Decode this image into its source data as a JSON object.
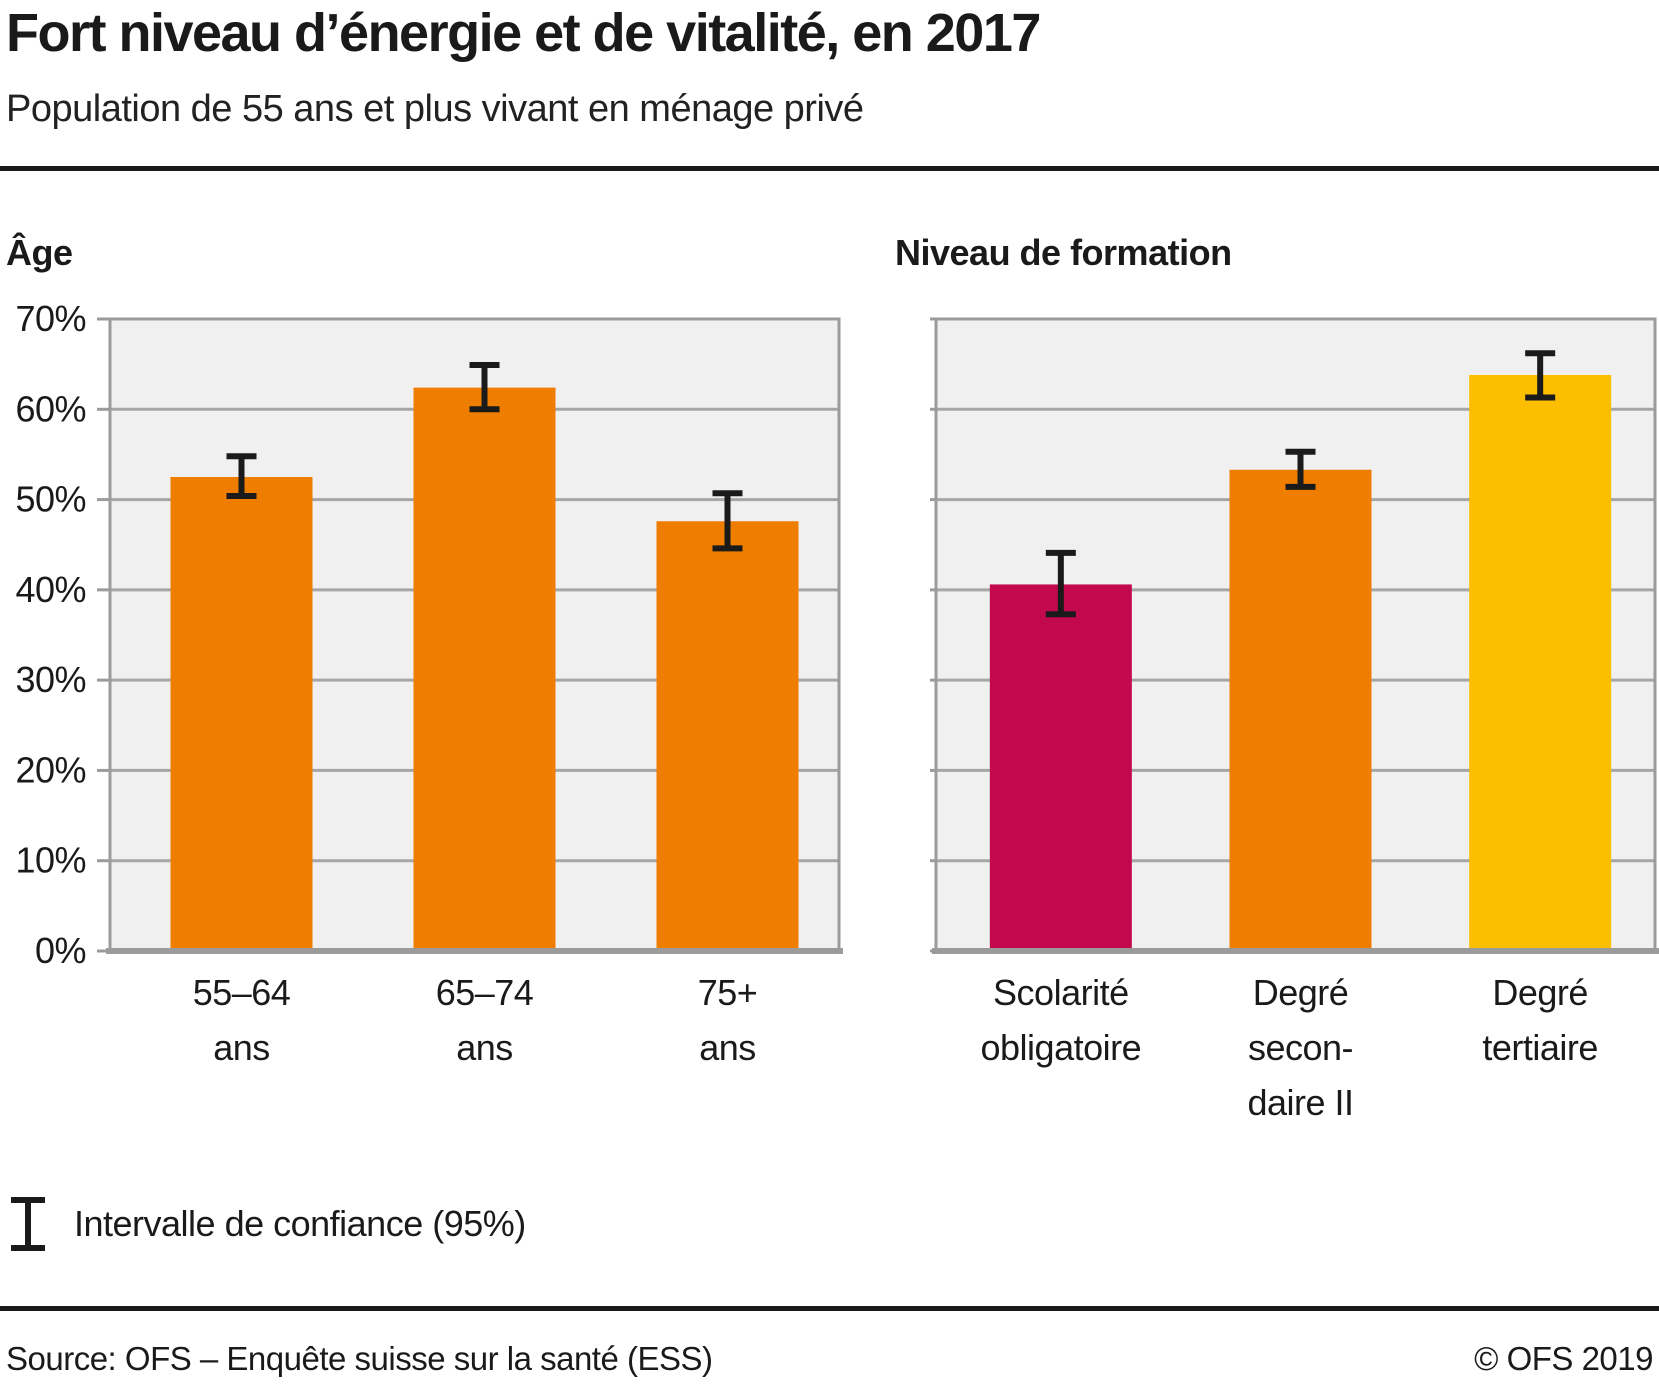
{
  "header": {
    "title": "Fort niveau d’énergie et de vitalité, en 2017",
    "subtitle": "Population de 55 ans et plus vivant en ménage privé"
  },
  "colors": {
    "orange": "#EF7D00",
    "magenta": "#C2094D",
    "yellow": "#FBBE00",
    "plot_bg": "#F0F0F0",
    "gridline": "#A6A6A6",
    "axis": "#9B9B9B",
    "error_bar": "#1A1A1A",
    "text": "#1A1A1A"
  },
  "chart_data": [
    {
      "type": "bar",
      "title": "Âge",
      "categories": [
        [
          "55–64",
          "ans"
        ],
        [
          "65–74",
          "ans"
        ],
        [
          "75+",
          "ans"
        ]
      ],
      "values": [
        52.5,
        62.4,
        47.6
      ],
      "ci_low": [
        50.4,
        60.0,
        44.6
      ],
      "ci_high": [
        54.8,
        64.9,
        50.7
      ],
      "bar_colors": [
        "#EF7D00",
        "#EF7D00",
        "#EF7D00"
      ],
      "ylim": [
        0,
        70
      ],
      "ytick_labels": [
        "0%",
        "10%",
        "20%",
        "30%",
        "40%",
        "50%",
        "60%",
        "70%"
      ],
      "grid": true,
      "legend_position": "none"
    },
    {
      "type": "bar",
      "title": "Niveau de formation",
      "categories": [
        [
          "Scolarité",
          "obligatoire"
        ],
        [
          "Degré",
          "secon-",
          "daire II"
        ],
        [
          "Degré",
          "tertiaire"
        ]
      ],
      "values": [
        40.6,
        53.3,
        63.8
      ],
      "ci_low": [
        37.3,
        51.4,
        61.3
      ],
      "ci_high": [
        44.1,
        55.3,
        66.2
      ],
      "bar_colors": [
        "#C2094D",
        "#EF7D00",
        "#FBBE00"
      ],
      "ylim": [
        0,
        70
      ],
      "ytick_labels": [
        "0%",
        "10%",
        "20%",
        "30%",
        "40%",
        "50%",
        "60%",
        "70%"
      ],
      "grid": true,
      "legend_position": "none"
    }
  ],
  "legend": {
    "symbol": "error-bar-icon",
    "label": "Intervalle de confiance (95%)"
  },
  "footer": {
    "source": "Source: OFS – Enquête suisse sur la santé (ESS)",
    "copyright": "© OFS 2019"
  }
}
